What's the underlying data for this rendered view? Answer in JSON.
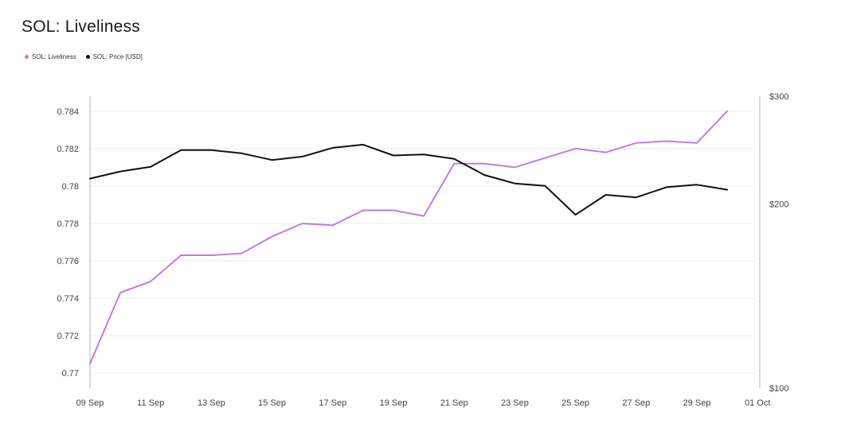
{
  "header": {
    "title": "SOL: Liveliness"
  },
  "colors": {
    "liveliness": "#c27ae6",
    "price": "#111111",
    "grid": "#ececec",
    "axis": "#b5b5b5"
  },
  "chart_data": {
    "type": "line",
    "title": "SOL: Liveliness",
    "x": [
      "09 Sep",
      "10 Sep",
      "11 Sep",
      "12 Sep",
      "13 Sep",
      "14 Sep",
      "15 Sep",
      "16 Sep",
      "17 Sep",
      "18 Sep",
      "19 Sep",
      "20 Sep",
      "21 Sep",
      "22 Sep",
      "23 Sep",
      "24 Sep",
      "25 Sep",
      "26 Sep",
      "27 Sep",
      "28 Sep",
      "29 Sep",
      "30 Sep"
    ],
    "x_tick_labels": [
      "09 Sep",
      "11 Sep",
      "13 Sep",
      "15 Sep",
      "17 Sep",
      "19 Sep",
      "21 Sep",
      "23 Sep",
      "25 Sep",
      "27 Sep",
      "29 Sep",
      "01 Oct"
    ],
    "series": [
      {
        "name": "SOL: Liveliness",
        "axis": "left",
        "values": [
          0.7705,
          0.7743,
          0.7749,
          0.7763,
          0.7763,
          0.7764,
          0.7773,
          0.778,
          0.7779,
          0.7787,
          0.7787,
          0.7784,
          0.7812,
          0.7812,
          0.781,
          0.7815,
          0.782,
          0.7818,
          0.7823,
          0.7824,
          0.7823,
          0.784
        ]
      },
      {
        "name": "SOL: Price [USD]",
        "axis": "right",
        "values": [
          220,
          226,
          230,
          245,
          245,
          242,
          236,
          239,
          247,
          250,
          240,
          241,
          237,
          223,
          216,
          214,
          192,
          207,
          205,
          213,
          215,
          211
        ]
      }
    ],
    "y_left": {
      "ticks": [
        0.77,
        0.772,
        0.774,
        0.776,
        0.778,
        0.78,
        0.782,
        0.784
      ],
      "tick_labels": [
        "0.77",
        "0.772",
        "0.774",
        "0.776",
        "0.778",
        "0.78",
        "0.782",
        "0.784"
      ],
      "ylim": [
        0.7692,
        0.7848
      ]
    },
    "y_right": {
      "scale": "log",
      "ticks": [
        100,
        200,
        300
      ],
      "tick_labels": [
        "$100",
        "$200",
        "$300"
      ],
      "ylim": [
        100,
        300
      ]
    },
    "grid": "horizontal",
    "legend_position": "top-left"
  }
}
